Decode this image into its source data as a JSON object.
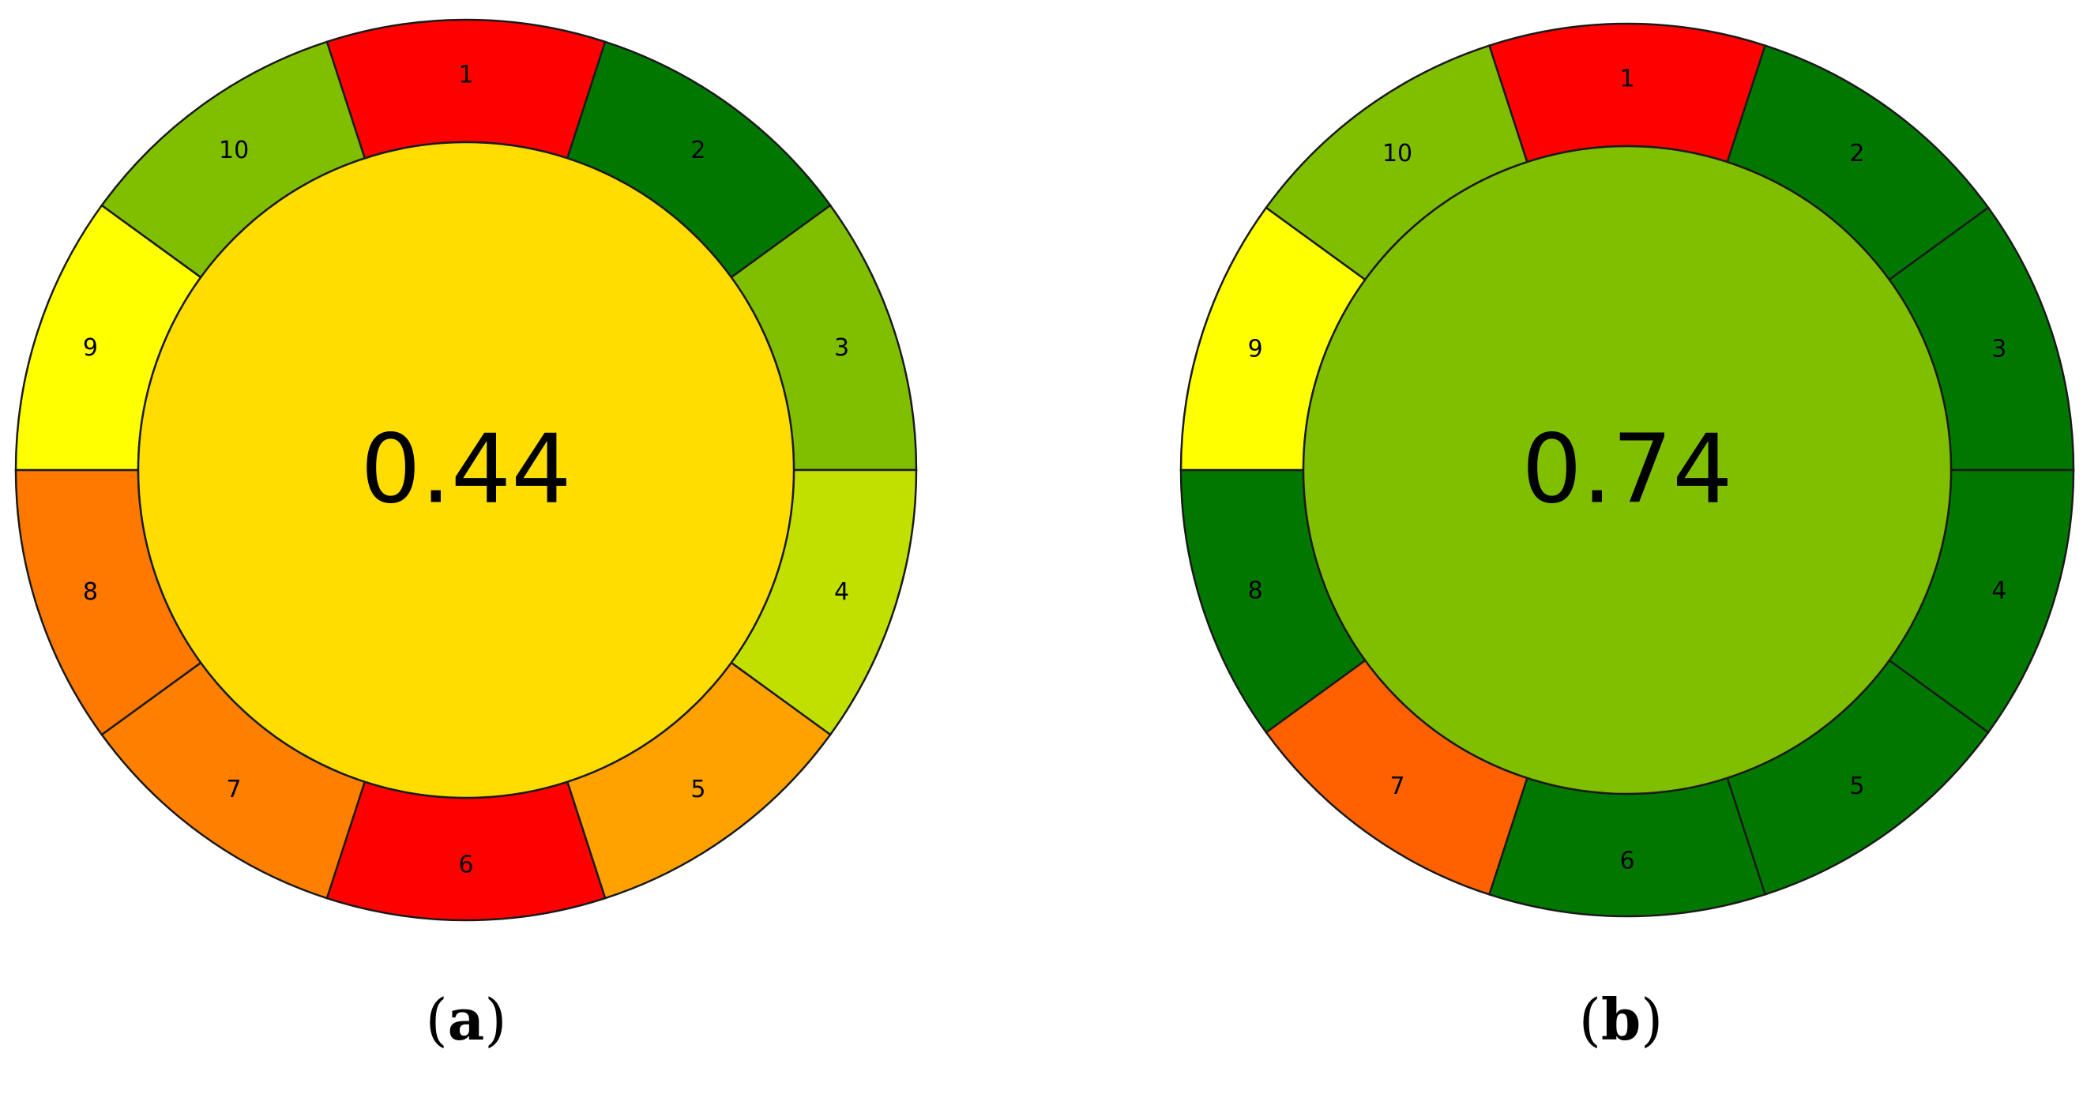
{
  "figures": [
    {
      "id": "a",
      "caption_label": "a",
      "score": "0.44",
      "center_color": "#FFDD00",
      "segments": [
        {
          "label": "1",
          "color": "#FF0000"
        },
        {
          "label": "2",
          "color": "#007800"
        },
        {
          "label": "3",
          "color": "#80BE00"
        },
        {
          "label": "4",
          "color": "#C2E000"
        },
        {
          "label": "5",
          "color": "#FFA200"
        },
        {
          "label": "6",
          "color": "#FF0000"
        },
        {
          "label": "7",
          "color": "#FF8000"
        },
        {
          "label": "8",
          "color": "#FF7800"
        },
        {
          "label": "9",
          "color": "#FFFF00"
        },
        {
          "label": "10",
          "color": "#80BE00"
        }
      ]
    },
    {
      "id": "b",
      "caption_label": "b",
      "score": "0.74",
      "center_color": "#80BE00",
      "segments": [
        {
          "label": "1",
          "color": "#FF0000"
        },
        {
          "label": "2",
          "color": "#007800"
        },
        {
          "label": "3",
          "color": "#007800"
        },
        {
          "label": "4",
          "color": "#007800"
        },
        {
          "label": "5",
          "color": "#007800"
        },
        {
          "label": "6",
          "color": "#007800"
        },
        {
          "label": "7",
          "color": "#FF6000"
        },
        {
          "label": "8",
          "color": "#007800"
        },
        {
          "label": "9",
          "color": "#FFFF00"
        },
        {
          "label": "10",
          "color": "#80BE00"
        }
      ]
    }
  ]
}
